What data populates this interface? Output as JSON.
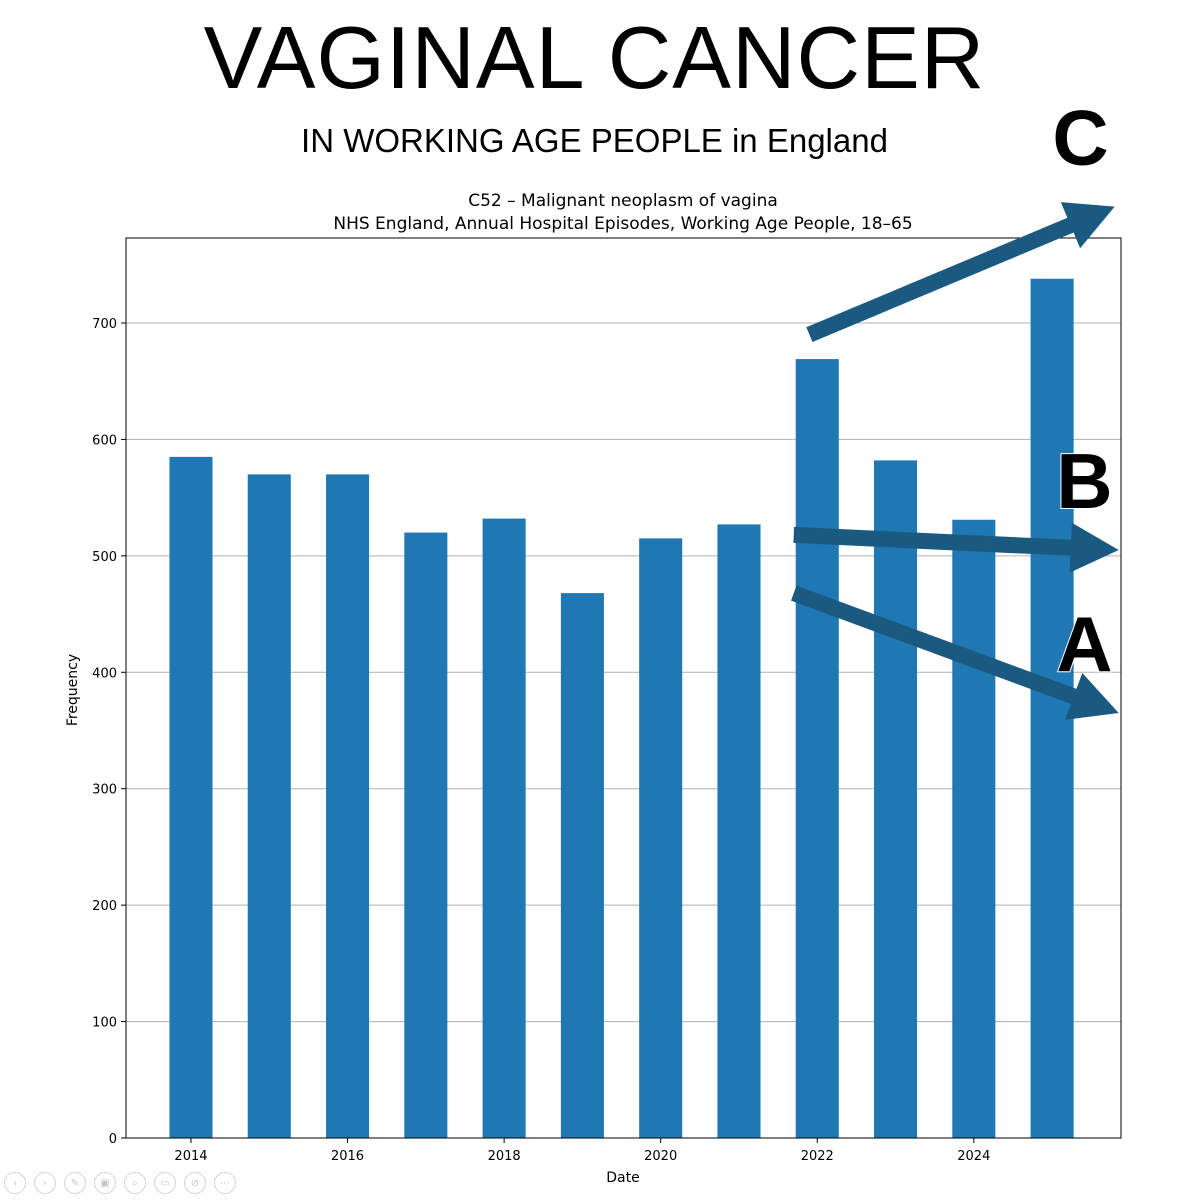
{
  "slide": {
    "title": "VAGINAL CANCER",
    "subtitle": "IN WORKING AGE PEOPLE in England"
  },
  "chart_data": {
    "type": "bar",
    "title": "C52 – Malignant neoplasm of vagina",
    "subtitle": "NHS England, Annual Hospital Episodes, Working Age People, 18–65",
    "xlabel": "Date",
    "ylabel": "Frequency",
    "x": [
      2014,
      2015,
      2016,
      2017,
      2018,
      2019,
      2020,
      2021,
      2022,
      2023,
      2024,
      2025
    ],
    "values": [
      585,
      570,
      570,
      520,
      532,
      468,
      515,
      527,
      669,
      582,
      531,
      738
    ],
    "xticks": [
      2014,
      2016,
      2018,
      2020,
      2022,
      2024
    ],
    "yticks": [
      0,
      100,
      200,
      300,
      400,
      500,
      600,
      700
    ],
    "xlim": [
      2013.17,
      2025.88
    ],
    "ylim": [
      0,
      773
    ],
    "grid": "y",
    "bar_color": "#1f77b4",
    "annotations": [
      {
        "label": "C",
        "from": [
          2021.9,
          690
        ],
        "to": [
          2025.8,
          800
        ]
      },
      {
        "label": "B",
        "from": [
          2021.7,
          518
        ],
        "to": [
          2025.85,
          505
        ]
      },
      {
        "label": "A",
        "from": [
          2021.7,
          468
        ],
        "to": [
          2025.85,
          365
        ]
      }
    ],
    "arrow_color": "#1a5a80"
  },
  "toolbar": {
    "buttons": [
      {
        "name": "previous-slide-button",
        "icon": "chevron-left-icon",
        "glyph": "‹"
      },
      {
        "name": "next-slide-button",
        "icon": "chevron-right-icon",
        "glyph": "›"
      },
      {
        "name": "pen-button",
        "icon": "pen-icon",
        "glyph": "✎"
      },
      {
        "name": "slides-button",
        "icon": "slides-icon",
        "glyph": "▣"
      },
      {
        "name": "zoom-button",
        "icon": "magnifier-icon",
        "glyph": "⌕"
      },
      {
        "name": "subtitles-button",
        "icon": "subtitles-icon",
        "glyph": "▭"
      },
      {
        "name": "camera-off-button",
        "icon": "camera-off-icon",
        "glyph": "⊘"
      },
      {
        "name": "more-options-button",
        "icon": "more-icon",
        "glyph": "⋯"
      }
    ]
  }
}
